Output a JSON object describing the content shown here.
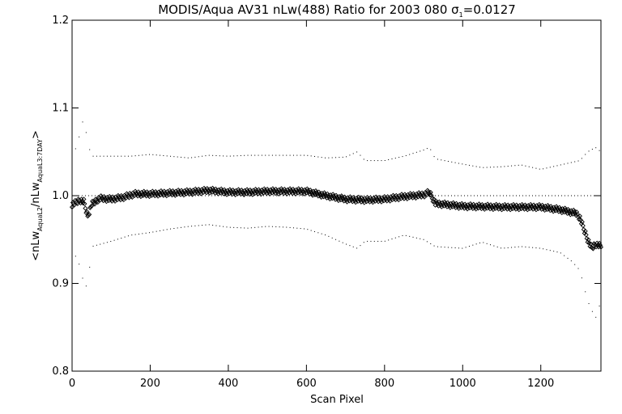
{
  "chart_data": {
    "type": "scatter",
    "title": "MODIS/Aqua AV31 nLw(488) Ratio for 2003 080 σ",
    "title_sigma_subscript": "1",
    "title_suffix": "=0.0127",
    "xlabel": "Scan Pixel",
    "ylabel_parts": {
      "open": "<nLw",
      "sub1": "AquaL2",
      "slash": "/nLw",
      "sub2": "AquaL3:7DAY",
      "close": ">"
    },
    "xlim": [
      0,
      1354
    ],
    "ylim": [
      0.8,
      1.2
    ],
    "x_ticks": [
      0,
      200,
      400,
      600,
      800,
      1000,
      1200
    ],
    "x_tick_labels": [
      "0",
      "200",
      "400",
      "600",
      "800",
      "1000",
      "1200"
    ],
    "y_ticks": [
      0.8,
      0.9,
      1.0,
      1.1,
      1.2
    ],
    "y_tick_labels": [
      "0.8",
      "0.9",
      "1.0",
      "1.1",
      "1.2"
    ],
    "reference_line": 1.0,
    "series": [
      {
        "role": "mean ratio",
        "marker": "diamond",
        "x": [
          0,
          10,
          20,
          30,
          40,
          50,
          70,
          100,
          130,
          160,
          200,
          250,
          300,
          350,
          400,
          450,
          500,
          550,
          600,
          650,
          700,
          750,
          800,
          850,
          900,
          915,
          930,
          1000,
          1100,
          1200,
          1250,
          1290,
          1300,
          1310,
          1320,
          1330,
          1340,
          1354
        ],
        "y": [
          0.99,
          0.992,
          0.995,
          0.993,
          0.976,
          0.99,
          0.997,
          0.996,
          0.998,
          1.002,
          1.002,
          1.003,
          1.004,
          1.006,
          1.004,
          1.004,
          1.005,
          1.005,
          1.005,
          1.0,
          0.996,
          0.995,
          0.996,
          0.999,
          1.001,
          1.004,
          0.991,
          0.988,
          0.987,
          0.987,
          0.984,
          0.98,
          0.975,
          0.962,
          0.95,
          0.94,
          0.945,
          0.942
        ]
      },
      {
        "role": "upper bound",
        "marker": "dot",
        "x": [
          0,
          20,
          30,
          40,
          50,
          100,
          150,
          200,
          250,
          300,
          350,
          400,
          450,
          500,
          550,
          600,
          650,
          700,
          730,
          750,
          800,
          850,
          900,
          915,
          930,
          1000,
          1050,
          1100,
          1150,
          1200,
          1250,
          1300,
          1320,
          1340,
          1354
        ],
        "y": [
          1.04,
          1.07,
          1.09,
          1.06,
          1.045,
          1.045,
          1.045,
          1.047,
          1.045,
          1.043,
          1.046,
          1.045,
          1.046,
          1.046,
          1.046,
          1.046,
          1.043,
          1.044,
          1.05,
          1.04,
          1.04,
          1.045,
          1.052,
          1.055,
          1.042,
          1.036,
          1.032,
          1.033,
          1.035,
          1.03,
          1.035,
          1.04,
          1.05,
          1.055,
          1.05
        ]
      },
      {
        "role": "lower bound",
        "marker": "dot",
        "x": [
          0,
          20,
          30,
          40,
          50,
          100,
          150,
          200,
          250,
          300,
          350,
          400,
          450,
          500,
          550,
          600,
          650,
          700,
          730,
          750,
          800,
          850,
          900,
          930,
          1000,
          1050,
          1100,
          1150,
          1200,
          1250,
          1280,
          1300,
          1320,
          1340,
          1354
        ],
        "y": [
          0.94,
          0.92,
          0.9,
          0.895,
          0.942,
          0.948,
          0.955,
          0.958,
          0.962,
          0.965,
          0.967,
          0.964,
          0.963,
          0.965,
          0.964,
          0.962,
          0.955,
          0.945,
          0.94,
          0.948,
          0.948,
          0.955,
          0.95,
          0.942,
          0.94,
          0.947,
          0.94,
          0.942,
          0.94,
          0.935,
          0.925,
          0.915,
          0.88,
          0.86,
          0.88
        ]
      }
    ]
  }
}
